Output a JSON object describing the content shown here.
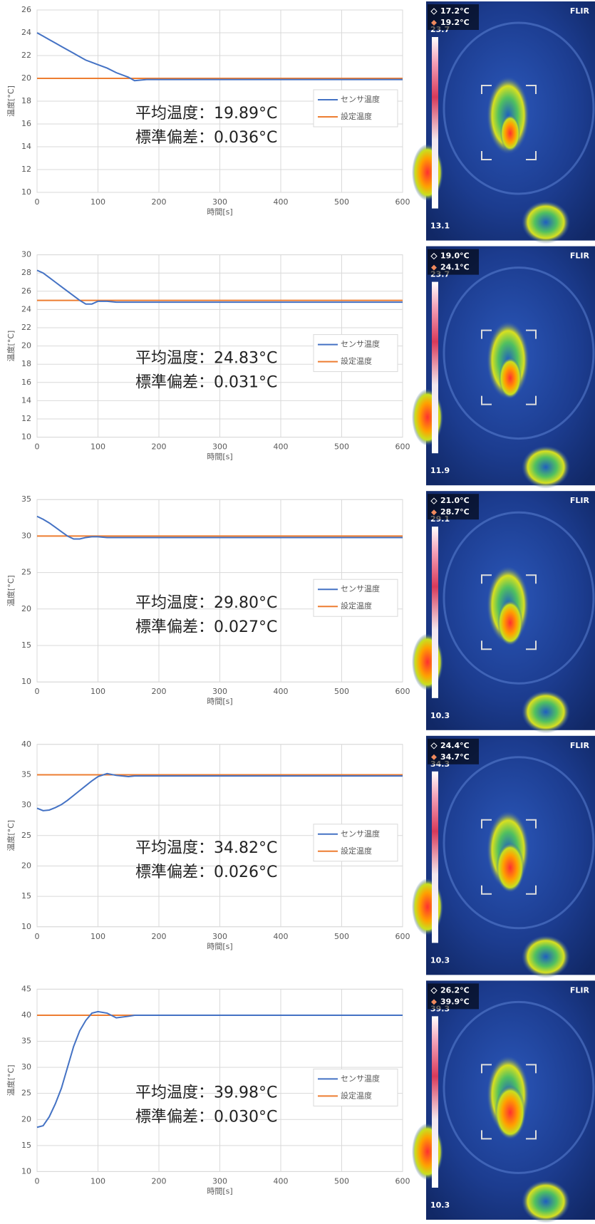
{
  "chart_data": [
    {
      "type": "line",
      "title_lines": [
        "平均温度：19.89°C",
        "標準偏差：0.036°C"
      ],
      "x_label": "時間[s]",
      "y_label": "温度[°C]",
      "x": [
        0,
        10,
        20,
        30,
        40,
        50,
        60,
        70,
        80,
        90,
        100,
        115,
        130,
        150,
        160,
        180,
        200,
        250,
        300,
        350,
        400,
        450,
        500,
        550,
        600
      ],
      "series": [
        {
          "name": "センサ温度",
          "color": "#4472c4",
          "values": [
            24,
            23.7,
            23.4,
            23.1,
            22.8,
            22.5,
            22.2,
            21.9,
            21.6,
            21.4,
            21.2,
            20.9,
            20.5,
            20.1,
            19.8,
            19.9,
            19.9,
            19.9,
            19.9,
            19.9,
            19.9,
            19.9,
            19.9,
            19.9,
            19.9
          ]
        },
        {
          "name": "設定温度",
          "color": "#ed7d31",
          "values": [
            20,
            20,
            20,
            20,
            20,
            20,
            20,
            20,
            20,
            20,
            20,
            20,
            20,
            20,
            20,
            20,
            20,
            20,
            20,
            20,
            20,
            20,
            20,
            20,
            20
          ]
        }
      ],
      "xlim": [
        0,
        600
      ],
      "xticks": [
        0,
        100,
        200,
        300,
        400,
        500,
        600
      ],
      "ylim": [
        10,
        26
      ],
      "yticks": [
        10,
        12,
        14,
        16,
        18,
        20,
        22,
        24,
        26
      ],
      "grid": true
    },
    {
      "type": "line",
      "title_lines": [
        "平均温度：24.83°C",
        "標準偏差：0.031°C"
      ],
      "x_label": "時間[s]",
      "y_label": "温度[°C]",
      "x": [
        0,
        10,
        20,
        30,
        40,
        50,
        60,
        70,
        80,
        90,
        100,
        115,
        130,
        150,
        160,
        180,
        200,
        250,
        300,
        350,
        400,
        450,
        500,
        550,
        600
      ],
      "series": [
        {
          "name": "センサ温度",
          "color": "#4472c4",
          "values": [
            28.3,
            28,
            27.5,
            27,
            26.5,
            26,
            25.5,
            25,
            24.6,
            24.6,
            24.9,
            24.9,
            24.8,
            24.8,
            24.8,
            24.8,
            24.8,
            24.8,
            24.8,
            24.8,
            24.8,
            24.8,
            24.8,
            24.8,
            24.8
          ]
        },
        {
          "name": "設定温度",
          "color": "#ed7d31",
          "values": [
            25,
            25,
            25,
            25,
            25,
            25,
            25,
            25,
            25,
            25,
            25,
            25,
            25,
            25,
            25,
            25,
            25,
            25,
            25,
            25,
            25,
            25,
            25,
            25,
            25
          ]
        }
      ],
      "xlim": [
        0,
        600
      ],
      "xticks": [
        0,
        100,
        200,
        300,
        400,
        500,
        600
      ],
      "ylim": [
        10,
        30
      ],
      "yticks": [
        10,
        12,
        14,
        16,
        18,
        20,
        22,
        24,
        26,
        28,
        30
      ],
      "grid": true
    },
    {
      "type": "line",
      "title_lines": [
        "平均温度：29.80°C",
        "標準偏差：0.027°C"
      ],
      "x_label": "時間[s]",
      "y_label": "温度[°C]",
      "x": [
        0,
        10,
        20,
        30,
        40,
        50,
        60,
        70,
        80,
        90,
        100,
        115,
        130,
        150,
        160,
        180,
        200,
        250,
        300,
        350,
        400,
        450,
        500,
        550,
        600
      ],
      "series": [
        {
          "name": "センサ温度",
          "color": "#4472c4",
          "values": [
            32.7,
            32.3,
            31.8,
            31.2,
            30.6,
            30,
            29.6,
            29.6,
            29.8,
            29.9,
            29.9,
            29.8,
            29.8,
            29.8,
            29.8,
            29.8,
            29.8,
            29.8,
            29.8,
            29.8,
            29.8,
            29.8,
            29.8,
            29.8,
            29.8
          ]
        },
        {
          "name": "設定温度",
          "color": "#ed7d31",
          "values": [
            30,
            30,
            30,
            30,
            30,
            30,
            30,
            30,
            30,
            30,
            30,
            30,
            30,
            30,
            30,
            30,
            30,
            30,
            30,
            30,
            30,
            30,
            30,
            30,
            30
          ]
        }
      ],
      "xlim": [
        0,
        600
      ],
      "xticks": [
        0,
        100,
        200,
        300,
        400,
        500,
        600
      ],
      "ylim": [
        10,
        35
      ],
      "yticks": [
        10,
        15,
        20,
        25,
        30,
        35
      ],
      "grid": true
    },
    {
      "type": "line",
      "title_lines": [
        "平均温度：34.82°C",
        "標準偏差：0.026°C"
      ],
      "x_label": "時間[s]",
      "y_label": "温度[°C]",
      "x": [
        0,
        10,
        20,
        30,
        40,
        50,
        60,
        70,
        80,
        90,
        100,
        115,
        130,
        150,
        160,
        180,
        200,
        250,
        300,
        350,
        400,
        450,
        500,
        550,
        600
      ],
      "series": [
        {
          "name": "センサ温度",
          "color": "#4472c4",
          "values": [
            29.5,
            29.1,
            29.2,
            29.6,
            30.1,
            30.8,
            31.6,
            32.4,
            33.2,
            34,
            34.7,
            35.2,
            34.9,
            34.7,
            34.8,
            34.8,
            34.8,
            34.8,
            34.8,
            34.8,
            34.8,
            34.8,
            34.8,
            34.8,
            34.8
          ]
        },
        {
          "name": "設定温度",
          "color": "#ed7d31",
          "values": [
            35,
            35,
            35,
            35,
            35,
            35,
            35,
            35,
            35,
            35,
            35,
            35,
            35,
            35,
            35,
            35,
            35,
            35,
            35,
            35,
            35,
            35,
            35,
            35,
            35
          ]
        }
      ],
      "xlim": [
        0,
        600
      ],
      "xticks": [
        0,
        100,
        200,
        300,
        400,
        500,
        600
      ],
      "ylim": [
        10,
        40
      ],
      "yticks": [
        10,
        15,
        20,
        25,
        30,
        35,
        40
      ],
      "grid": true
    },
    {
      "type": "line",
      "title_lines": [
        "平均温度：39.98°C",
        "標準偏差：0.030°C"
      ],
      "x_label": "時間[s]",
      "y_label": "温度[°C]",
      "x": [
        0,
        10,
        20,
        30,
        40,
        50,
        60,
        70,
        80,
        90,
        100,
        115,
        130,
        150,
        160,
        180,
        200,
        250,
        300,
        350,
        400,
        450,
        500,
        550,
        600
      ],
      "series": [
        {
          "name": "センサ温度",
          "color": "#4472c4",
          "values": [
            18.5,
            18.8,
            20.5,
            23,
            26,
            30,
            34,
            37,
            39,
            40.4,
            40.7,
            40.4,
            39.5,
            39.8,
            40,
            40,
            40,
            40,
            40,
            40,
            40,
            40,
            40,
            40,
            40
          ]
        },
        {
          "name": "設定温度",
          "color": "#ed7d31",
          "values": [
            40,
            40,
            40,
            40,
            40,
            40,
            40,
            40,
            40,
            40,
            40,
            40,
            40,
            40,
            40,
            40,
            40,
            40,
            40,
            40,
            40,
            40,
            40,
            40,
            40
          ]
        }
      ],
      "xlim": [
        0,
        600
      ],
      "xticks": [
        0,
        100,
        200,
        300,
        400,
        500,
        600
      ],
      "ylim": [
        10,
        45
      ],
      "yticks": [
        10,
        15,
        20,
        25,
        30,
        35,
        40,
        45
      ],
      "grid": true
    }
  ],
  "brand": "FLIR",
  "thermal_images": [
    {
      "min_marker": "17.2°C",
      "max_marker": "19.2°C",
      "scale_max": "23.7",
      "scale_min": "13.1"
    },
    {
      "min_marker": "19.0°C",
      "max_marker": "24.1°C",
      "scale_max": "23.7",
      "scale_min": "11.9"
    },
    {
      "min_marker": "21.0°C",
      "max_marker": "28.7°C",
      "scale_max": "29.1",
      "scale_min": "10.3"
    },
    {
      "min_marker": "24.4°C",
      "max_marker": "34.7°C",
      "scale_max": "34.3",
      "scale_min": "10.3"
    },
    {
      "min_marker": "26.2°C",
      "max_marker": "39.9°C",
      "scale_max": "39.3",
      "scale_min": "10.3"
    }
  ]
}
